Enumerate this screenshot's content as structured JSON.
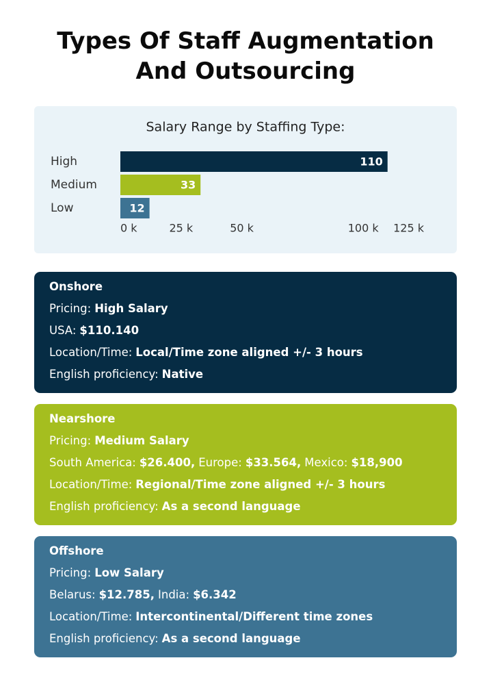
{
  "title": "Types Of Staff Augmentation And Outsourcing",
  "chart_data": {
    "type": "bar",
    "orientation": "horizontal",
    "title": "Salary Range by Staffing Type:",
    "categories": [
      "High",
      "Medium",
      "Low"
    ],
    "values": [
      110,
      33,
      12
    ],
    "colors": [
      "#062c44",
      "#a5be1f",
      "#3d7393"
    ],
    "xlim": [
      0,
      125
    ],
    "xticks": [
      {
        "value": 0,
        "label": "0 k"
      },
      {
        "value": 25,
        "label": "25 k"
      },
      {
        "value": 50,
        "label": "50 k"
      },
      {
        "value": 100,
        "label": "100 k"
      },
      {
        "value": 125,
        "label": "125 k"
      }
    ],
    "grid": false
  },
  "cards": [
    {
      "title": "Onshore",
      "color": "#062c44",
      "lines": [
        [
          [
            "Pricing:",
            "High Salary"
          ]
        ],
        [
          [
            "USA:",
            "$110.140"
          ]
        ],
        [
          [
            "Location/Time:",
            "Local/Time zone aligned +/- 3 hours"
          ]
        ],
        [
          [
            "English proficiency:",
            "Native"
          ]
        ]
      ]
    },
    {
      "title": "Nearshore",
      "color": "#a5be1f",
      "lines": [
        [
          [
            "Pricing:",
            "Medium Salary"
          ]
        ],
        [
          [
            "South America:",
            "$26.400,"
          ],
          [
            "Europe:",
            "$33.564,"
          ],
          [
            "Mexico:",
            "$18,900"
          ]
        ],
        [
          [
            "Location/Time:",
            "Regional/Time zone aligned +/- 3 hours"
          ]
        ],
        [
          [
            "English proficiency:",
            "As a second language"
          ]
        ]
      ]
    },
    {
      "title": "Offshore",
      "color": "#3d7393",
      "lines": [
        [
          [
            "Pricing:",
            "Low Salary"
          ]
        ],
        [
          [
            "Belarus:",
            "$12.785,"
          ],
          [
            "India:",
            "$6.342"
          ]
        ],
        [
          [
            "Location/Time:",
            "Intercontinental/Different time zones"
          ]
        ],
        [
          [
            "English proficiency:",
            "As a second language"
          ]
        ]
      ]
    }
  ]
}
